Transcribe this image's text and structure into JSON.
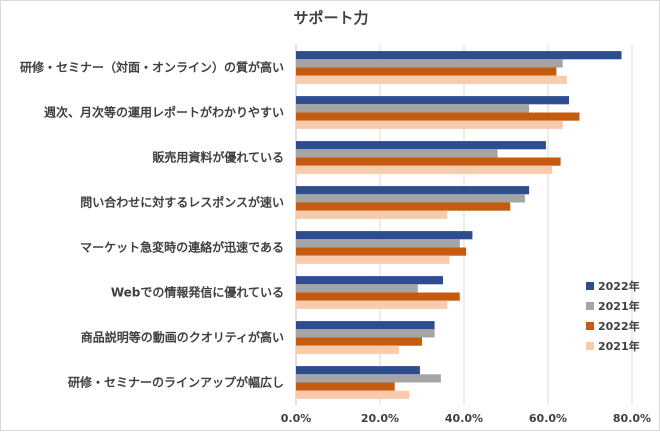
{
  "chart_data": {
    "type": "bar",
    "orientation": "horizontal",
    "title": "サポート力",
    "categories": [
      "研修・セミナー（対面・オンライン）の質が高い",
      "週次、月次等の運用レポートがわかりやすい",
      "販売用資料が優れている",
      "問い合わせに対するレスポンスが速い",
      "マーケット急変時の連絡が迅速である",
      "Webでの情報発信に優れている",
      "商品説明等の動画のクオリティが高い",
      "研修・セミナーのラインアップが幅広し"
    ],
    "series": [
      {
        "name": "2022年",
        "color": "#2e4d8f",
        "values": [
          77.5,
          65.0,
          59.5,
          55.5,
          42.0,
          35.0,
          33.0,
          29.5
        ]
      },
      {
        "name": "2021年",
        "color": "#a5a5a5",
        "values": [
          63.5,
          55.5,
          48.0,
          54.5,
          39.0,
          29.0,
          33.0,
          34.5
        ]
      },
      {
        "name": "2022年",
        "color": "#c55a11",
        "values": [
          62.0,
          67.5,
          63.0,
          51.0,
          40.5,
          39.0,
          30.0,
          23.5
        ]
      },
      {
        "name": "2021年",
        "color": "#f8cbad",
        "values": [
          64.5,
          63.5,
          61.0,
          36.0,
          36.5,
          36.0,
          24.5,
          27.0
        ]
      }
    ],
    "xlim": [
      0,
      80
    ],
    "xticks": [
      "0.0%",
      "20.0%",
      "40.0%",
      "60.0%",
      "80.0%"
    ],
    "xtick_values": [
      0,
      20,
      40,
      60,
      80
    ],
    "legend_position": "right",
    "grid": "vertical"
  }
}
